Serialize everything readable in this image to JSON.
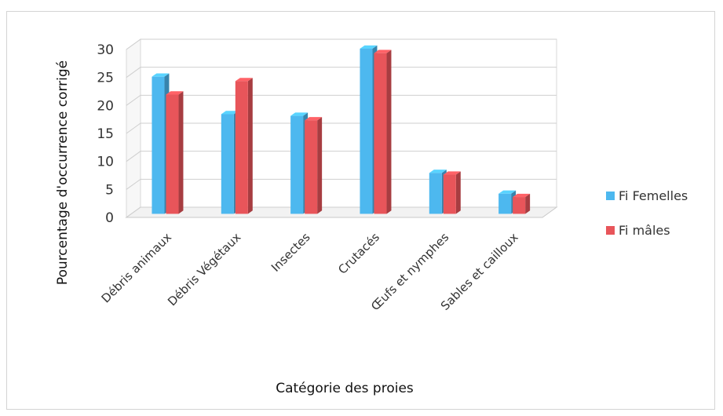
{
  "chart_data": {
    "type": "bar",
    "title": "",
    "xlabel": "Catégorie des proies",
    "ylabel": "Pourcentage d'occurrence corrigé",
    "categories": [
      "Débris animaux",
      "Débris Végétaux",
      "Insectes",
      "Crutacés",
      "Œufs et nymphes",
      "Sables et cailloux"
    ],
    "series": [
      {
        "name": "Fi Femelles",
        "color": "#4db8ef",
        "values": [
          24.5,
          17.8,
          17.5,
          29.5,
          7.3,
          3.6
        ]
      },
      {
        "name": "Fi mâles",
        "color": "#e8555a",
        "values": [
          21.3,
          23.7,
          16.7,
          28.7,
          7.0,
          3.0
        ]
      }
    ],
    "ylim": [
      0,
      30
    ],
    "yticks": [
      0,
      5,
      10,
      15,
      20,
      25,
      30
    ],
    "grid": true,
    "legend_position": "right",
    "style": "3d-clustered-column"
  }
}
